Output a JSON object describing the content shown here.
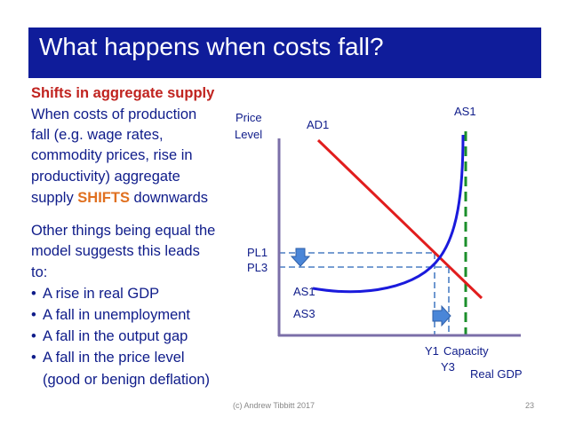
{
  "slide": {
    "title": "What happens when costs fall?",
    "heading": "Shifts in aggregate supply",
    "para1": {
      "lines": [
        "When costs of production",
        "fall (e.g. wage rates,",
        "commodity prices, rise in",
        "productivity) aggregate"
      ],
      "last_prefix": "supply ",
      "last_highlight": "SHIFTS",
      "last_suffix": " downwards"
    },
    "para2": {
      "lines": [
        "Other things being equal the",
        "model suggests this leads",
        "to:"
      ]
    },
    "bullets": [
      "A rise in real GDP",
      "A fall in unemployment",
      "A fall in the output gap",
      "A fall in the price level",
      "(good or benign deflation)"
    ]
  },
  "diagram": {
    "y_axis_label_line1": "Price",
    "y_axis_label_line2": "Level",
    "x_axis_label": "Real GDP",
    "ad_label": "AD1",
    "as_top_label": "AS1",
    "as1_label": "AS1",
    "as3_label": "AS3",
    "pl1_label": "PL1",
    "pl3_label": "PL3",
    "y1_label": "Y1",
    "y3_label": "Y3",
    "capacity_label": "Capacity",
    "colors": {
      "ad_curve": "#e11d1d",
      "as_curve": "#1a1adc",
      "capacity_line": "#1b8f2b",
      "axes": "#7b6fa8",
      "guide_lines": "#4a7fc4",
      "arrows": "#4a86d8"
    }
  },
  "footer": {
    "credit": "(c) Andrew Tibbitt 2017",
    "page": "23"
  }
}
